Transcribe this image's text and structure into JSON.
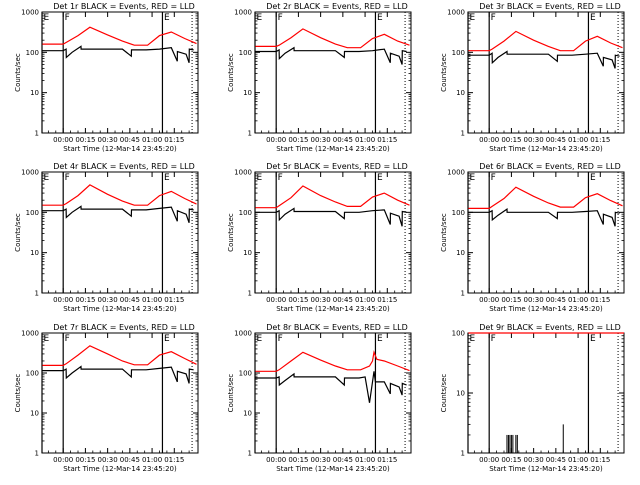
{
  "colors": {
    "events": "#000000",
    "lld": "#ff0000",
    "axes": "#000000",
    "background": "#ffffff"
  },
  "chart_data": [
    {
      "type": "line",
      "title": "Det 1r BLACK = Events, RED = LLD",
      "xlabel": "Start Time (12-Mar-14 23:45:20)",
      "ylabel": "Counts/sec",
      "yscale": "log",
      "ylim": [
        1,
        1000
      ],
      "xlim_min": [
        -14.3,
        91
      ],
      "x_tick_labels": [
        "00:00",
        "00:15",
        "00:30",
        "00:45",
        "01:00",
        "01:15"
      ],
      "y_tick_labels": [
        "1",
        "10",
        "100",
        "1000"
      ],
      "flags": [
        {
          "label": "E",
          "x": -14.3
        },
        {
          "label": "F",
          "x": 0
        },
        {
          "label": "E",
          "x": 67
        }
      ],
      "dotted_line_x": 87,
      "series": [
        {
          "name": "LLD",
          "color": "#ff0000",
          "x": [
            -14,
            0,
            2,
            10,
            18,
            30,
            40,
            48,
            57,
            65,
            73,
            82,
            90
          ],
          "y": [
            160,
            160,
            175,
            260,
            420,
            270,
            190,
            150,
            150,
            260,
            320,
            220,
            165
          ]
        },
        {
          "name": "Events",
          "color": "#000000",
          "x": [
            -14,
            0,
            2,
            2.1,
            6,
            12,
            12.1,
            40,
            46,
            46.1,
            56,
            65,
            73,
            77,
            77.1,
            83,
            85,
            85.1,
            88
          ],
          "y": [
            110,
            110,
            120,
            75,
            100,
            140,
            120,
            120,
            80,
            115,
            115,
            120,
            130,
            60,
            105,
            90,
            55,
            120,
            115
          ]
        }
      ]
    },
    {
      "type": "line",
      "title": "Det 2r BLACK = Events, RED = LLD",
      "xlabel": "Start Time (12-Mar-14 23:45:20)",
      "ylabel": "Counts/sec",
      "yscale": "log",
      "ylim": [
        1,
        1000
      ],
      "xlim_min": [
        -14.3,
        91
      ],
      "x_tick_labels": [
        "00:00",
        "00:15",
        "00:30",
        "00:45",
        "01:00",
        "01:15"
      ],
      "y_tick_labels": [
        "1",
        "10",
        "100",
        "1000"
      ],
      "flags": [
        {
          "label": "E",
          "x": -14.3
        },
        {
          "label": "F",
          "x": 0
        },
        {
          "label": "E",
          "x": 67
        }
      ],
      "dotted_line_x": 87,
      "series": [
        {
          "name": "LLD",
          "color": "#ff0000",
          "x": [
            -14,
            0,
            2,
            10,
            18,
            30,
            40,
            48,
            57,
            65,
            73,
            82,
            90
          ],
          "y": [
            140,
            140,
            150,
            230,
            380,
            230,
            160,
            130,
            130,
            220,
            280,
            190,
            150
          ]
        },
        {
          "name": "Events",
          "color": "#000000",
          "x": [
            -14,
            0,
            2,
            2.1,
            6,
            12,
            12.1,
            40,
            46,
            46.1,
            56,
            65,
            73,
            77,
            77.1,
            83,
            85,
            85.1,
            88
          ],
          "y": [
            105,
            105,
            115,
            70,
            95,
            130,
            110,
            110,
            75,
            105,
            105,
            110,
            120,
            55,
            95,
            80,
            50,
            110,
            105
          ]
        }
      ]
    },
    {
      "type": "line",
      "title": "Det 3r BLACK = Events, RED = LLD",
      "xlabel": "Start Time (12-Mar-14 23:45:20)",
      "ylabel": "Counts/sec",
      "yscale": "log",
      "ylim": [
        1,
        1000
      ],
      "xlim_min": [
        -14.3,
        91
      ],
      "x_tick_labels": [
        "00:00",
        "00:15",
        "00:30",
        "00:45",
        "01:00",
        "01:15"
      ],
      "y_tick_labels": [
        "1",
        "10",
        "100",
        "1000"
      ],
      "flags": [
        {
          "label": "E",
          "x": -14.3
        },
        {
          "label": "F",
          "x": 0
        },
        {
          "label": "E",
          "x": 67
        }
      ],
      "dotted_line_x": 87,
      "series": [
        {
          "name": "LLD",
          "color": "#ff0000",
          "x": [
            -14,
            0,
            2,
            10,
            18,
            30,
            40,
            48,
            57,
            65,
            73,
            82,
            90
          ],
          "y": [
            110,
            110,
            120,
            190,
            330,
            200,
            140,
            110,
            110,
            190,
            250,
            170,
            130
          ]
        },
        {
          "name": "Events",
          "color": "#000000",
          "x": [
            -14,
            0,
            2,
            2.1,
            6,
            12,
            12.1,
            40,
            46,
            46.1,
            56,
            65,
            73,
            77,
            77.1,
            83,
            85,
            85.1,
            88
          ],
          "y": [
            85,
            85,
            95,
            55,
            75,
            105,
            90,
            90,
            60,
            85,
            85,
            90,
            95,
            45,
            75,
            65,
            40,
            85,
            80
          ]
        }
      ]
    },
    {
      "type": "line",
      "title": "Det 4r BLACK = Events, RED = LLD",
      "xlabel": "Start Time (12-Mar-14 23:45:20)",
      "ylabel": "Counts/sec",
      "yscale": "log",
      "ylim": [
        1,
        1000
      ],
      "xlim_min": [
        -14.3,
        91
      ],
      "x_tick_labels": [
        "00:00",
        "00:15",
        "00:30",
        "00:45",
        "01:00",
        "01:15"
      ],
      "y_tick_labels": [
        "1",
        "10",
        "100",
        "1000"
      ],
      "flags": [
        {
          "label": "E",
          "x": -14.3
        },
        {
          "label": "F",
          "x": 0
        },
        {
          "label": "E",
          "x": 67
        }
      ],
      "dotted_line_x": 87,
      "series": [
        {
          "name": "LLD",
          "color": "#ff0000",
          "x": [
            -14,
            0,
            2,
            10,
            18,
            30,
            40,
            48,
            57,
            65,
            73,
            82,
            90
          ],
          "y": [
            150,
            150,
            165,
            260,
            480,
            280,
            190,
            150,
            150,
            260,
            330,
            220,
            160
          ]
        },
        {
          "name": "Events",
          "color": "#000000",
          "x": [
            -14,
            0,
            2,
            2.1,
            6,
            12,
            12.1,
            40,
            46,
            46.1,
            56,
            65,
            73,
            77,
            77.1,
            83,
            85,
            85.1,
            88
          ],
          "y": [
            110,
            110,
            120,
            75,
            100,
            140,
            120,
            120,
            80,
            115,
            115,
            125,
            135,
            60,
            110,
            90,
            55,
            120,
            115
          ]
        }
      ]
    },
    {
      "type": "line",
      "title": "Det 5r BLACK = Events, RED = LLD",
      "xlabel": "Start Time (12-Mar-14 23:45:20)",
      "ylabel": "Counts/sec",
      "yscale": "log",
      "ylim": [
        1,
        1000
      ],
      "xlim_min": [
        -14.3,
        91
      ],
      "x_tick_labels": [
        "00:00",
        "00:15",
        "00:30",
        "00:45",
        "01:00",
        "01:15"
      ],
      "y_tick_labels": [
        "1",
        "10",
        "100",
        "1000"
      ],
      "flags": [
        {
          "label": "E",
          "x": -14.3
        },
        {
          "label": "F",
          "x": 0
        },
        {
          "label": "E",
          "x": 67
        }
      ],
      "dotted_line_x": 87,
      "series": [
        {
          "name": "LLD",
          "color": "#ff0000",
          "x": [
            -14,
            0,
            2,
            10,
            18,
            30,
            40,
            48,
            57,
            65,
            73,
            82,
            90
          ],
          "y": [
            130,
            130,
            145,
            230,
            450,
            260,
            180,
            140,
            140,
            240,
            300,
            200,
            150
          ]
        },
        {
          "name": "Events",
          "color": "#000000",
          "x": [
            -14,
            0,
            2,
            2.1,
            6,
            12,
            12.1,
            40,
            46,
            46.1,
            56,
            65,
            73,
            77,
            77.1,
            83,
            85,
            85.1,
            88
          ],
          "y": [
            100,
            100,
            110,
            65,
            90,
            125,
            105,
            105,
            70,
            100,
            100,
            110,
            115,
            50,
            95,
            80,
            45,
            105,
            100
          ]
        }
      ]
    },
    {
      "type": "line",
      "title": "Det 6r BLACK = Events, RED = LLD",
      "xlabel": "Start Time (12-Mar-14 23:45:20)",
      "ylabel": "Counts/sec",
      "yscale": "log",
      "ylim": [
        1,
        1000
      ],
      "xlim_min": [
        -14.3,
        91
      ],
      "x_tick_labels": [
        "00:00",
        "00:15",
        "00:30",
        "00:45",
        "01:00",
        "01:15"
      ],
      "y_tick_labels": [
        "1",
        "10",
        "100",
        "1000"
      ],
      "flags": [
        {
          "label": "E",
          "x": -14.3
        },
        {
          "label": "F",
          "x": 0
        },
        {
          "label": "E",
          "x": 67
        }
      ],
      "dotted_line_x": 87,
      "series": [
        {
          "name": "LLD",
          "color": "#ff0000",
          "x": [
            -14,
            0,
            2,
            10,
            18,
            30,
            40,
            48,
            57,
            65,
            73,
            82,
            90
          ],
          "y": [
            125,
            125,
            140,
            220,
            420,
            250,
            170,
            135,
            135,
            230,
            290,
            195,
            145
          ]
        },
        {
          "name": "Events",
          "color": "#000000",
          "x": [
            -14,
            0,
            2,
            2.1,
            6,
            12,
            12.1,
            40,
            46,
            46.1,
            56,
            65,
            73,
            77,
            77.1,
            83,
            85,
            85.1,
            88
          ],
          "y": [
            100,
            100,
            110,
            65,
            85,
            120,
            100,
            100,
            70,
            100,
            100,
            105,
            110,
            50,
            90,
            75,
            45,
            100,
            95
          ]
        }
      ]
    },
    {
      "type": "line",
      "title": "Det 7r BLACK = Events, RED = LLD",
      "xlabel": "Start Time (12-Mar-14 23:45:20)",
      "ylabel": "Counts/sec",
      "yscale": "log",
      "ylim": [
        1,
        1000
      ],
      "xlim_min": [
        -14.3,
        91
      ],
      "x_tick_labels": [
        "00:00",
        "00:15",
        "00:30",
        "00:45",
        "01:00",
        "01:15"
      ],
      "y_tick_labels": [
        "1",
        "10",
        "100",
        "1000"
      ],
      "flags": [
        {
          "label": "E",
          "x": -14.3
        },
        {
          "label": "F",
          "x": 0
        },
        {
          "label": "E",
          "x": 67
        }
      ],
      "dotted_line_x": 87,
      "series": [
        {
          "name": "LLD",
          "color": "#ff0000",
          "x": [
            -14,
            0,
            2,
            10,
            18,
            30,
            40,
            48,
            57,
            65,
            73,
            82,
            90
          ],
          "y": [
            155,
            155,
            170,
            280,
            480,
            300,
            200,
            160,
            160,
            280,
            340,
            230,
            165
          ]
        },
        {
          "name": "Events",
          "color": "#000000",
          "x": [
            -14,
            0,
            2,
            2.1,
            6,
            12,
            12.1,
            40,
            46,
            46.1,
            56,
            65,
            73,
            77,
            77.1,
            83,
            85,
            85.1,
            88
          ],
          "y": [
            115,
            115,
            125,
            75,
            100,
            145,
            125,
            125,
            80,
            120,
            120,
            130,
            140,
            60,
            110,
            95,
            55,
            125,
            120
          ]
        }
      ]
    },
    {
      "type": "line",
      "title": "Det 8r BLACK = Events, RED = LLD",
      "xlabel": "Start Time (12-Mar-14 23:45:20)",
      "ylabel": "Counts/sec",
      "yscale": "log",
      "ylim": [
        1,
        1000
      ],
      "xlim_min": [
        -14.3,
        91
      ],
      "x_tick_labels": [
        "00:00",
        "00:15",
        "00:30",
        "00:45",
        "01:00",
        "01:15"
      ],
      "y_tick_labels": [
        "1",
        "10",
        "100",
        "1000"
      ],
      "flags": [
        {
          "label": "E",
          "x": -14.3
        },
        {
          "label": "F",
          "x": 0
        },
        {
          "label": "E",
          "x": 67
        }
      ],
      "dotted_line_x": 87,
      "series": [
        {
          "name": "LLD",
          "color": "#ff0000",
          "x": [
            -14,
            0,
            2,
            10,
            18,
            30,
            40,
            48,
            57,
            63,
            65,
            66,
            68,
            73,
            82,
            90
          ],
          "y": [
            110,
            110,
            120,
            200,
            330,
            210,
            150,
            120,
            120,
            150,
            200,
            330,
            220,
            200,
            150,
            115
          ]
        },
        {
          "name": "Events",
          "color": "#000000",
          "x": [
            -14,
            0,
            2,
            2.1,
            6,
            12,
            12.1,
            40,
            46,
            46.1,
            56,
            60,
            62,
            63,
            65,
            66,
            67,
            73,
            77,
            77.1,
            83,
            85,
            85.1,
            88
          ],
          "y": [
            75,
            75,
            80,
            50,
            65,
            95,
            80,
            80,
            50,
            75,
            75,
            80,
            30,
            18,
            60,
            110,
            60,
            60,
            30,
            55,
            45,
            28,
            55,
            50
          ]
        }
      ]
    },
    {
      "type": "line",
      "title": "Det 9r BLACK = Events, RED = LLD",
      "xlabel": "Start Time (12-Mar-14 23:45:20)",
      "ylabel": "Counts/sec",
      "yscale": "log",
      "ylim": [
        1,
        100
      ],
      "xlim_min": [
        -14.3,
        91
      ],
      "x_tick_labels": [
        "00:00",
        "00:15",
        "00:30",
        "00:45",
        "01:00",
        "01:15"
      ],
      "y_tick_labels": [
        "1",
        "10",
        "100"
      ],
      "flags": [
        {
          "label": "E",
          "x": -14.3
        },
        {
          "label": "F",
          "x": 0
        },
        {
          "label": "E",
          "x": 67
        }
      ],
      "dotted_line_x": 87,
      "series": [
        {
          "name": "LLD",
          "color": "#ff0000",
          "x": [
            -14,
            -8,
            -3,
            0,
            91
          ],
          "y": [
            100,
            100,
            100,
            100,
            100
          ]
        },
        {
          "name": "Events",
          "color": "#000000",
          "style": "spikes",
          "x": [
            12,
            13,
            14,
            15,
            16,
            18,
            19,
            50
          ],
          "y": [
            2,
            2,
            2,
            2,
            2,
            2,
            2,
            3
          ]
        }
      ]
    }
  ]
}
